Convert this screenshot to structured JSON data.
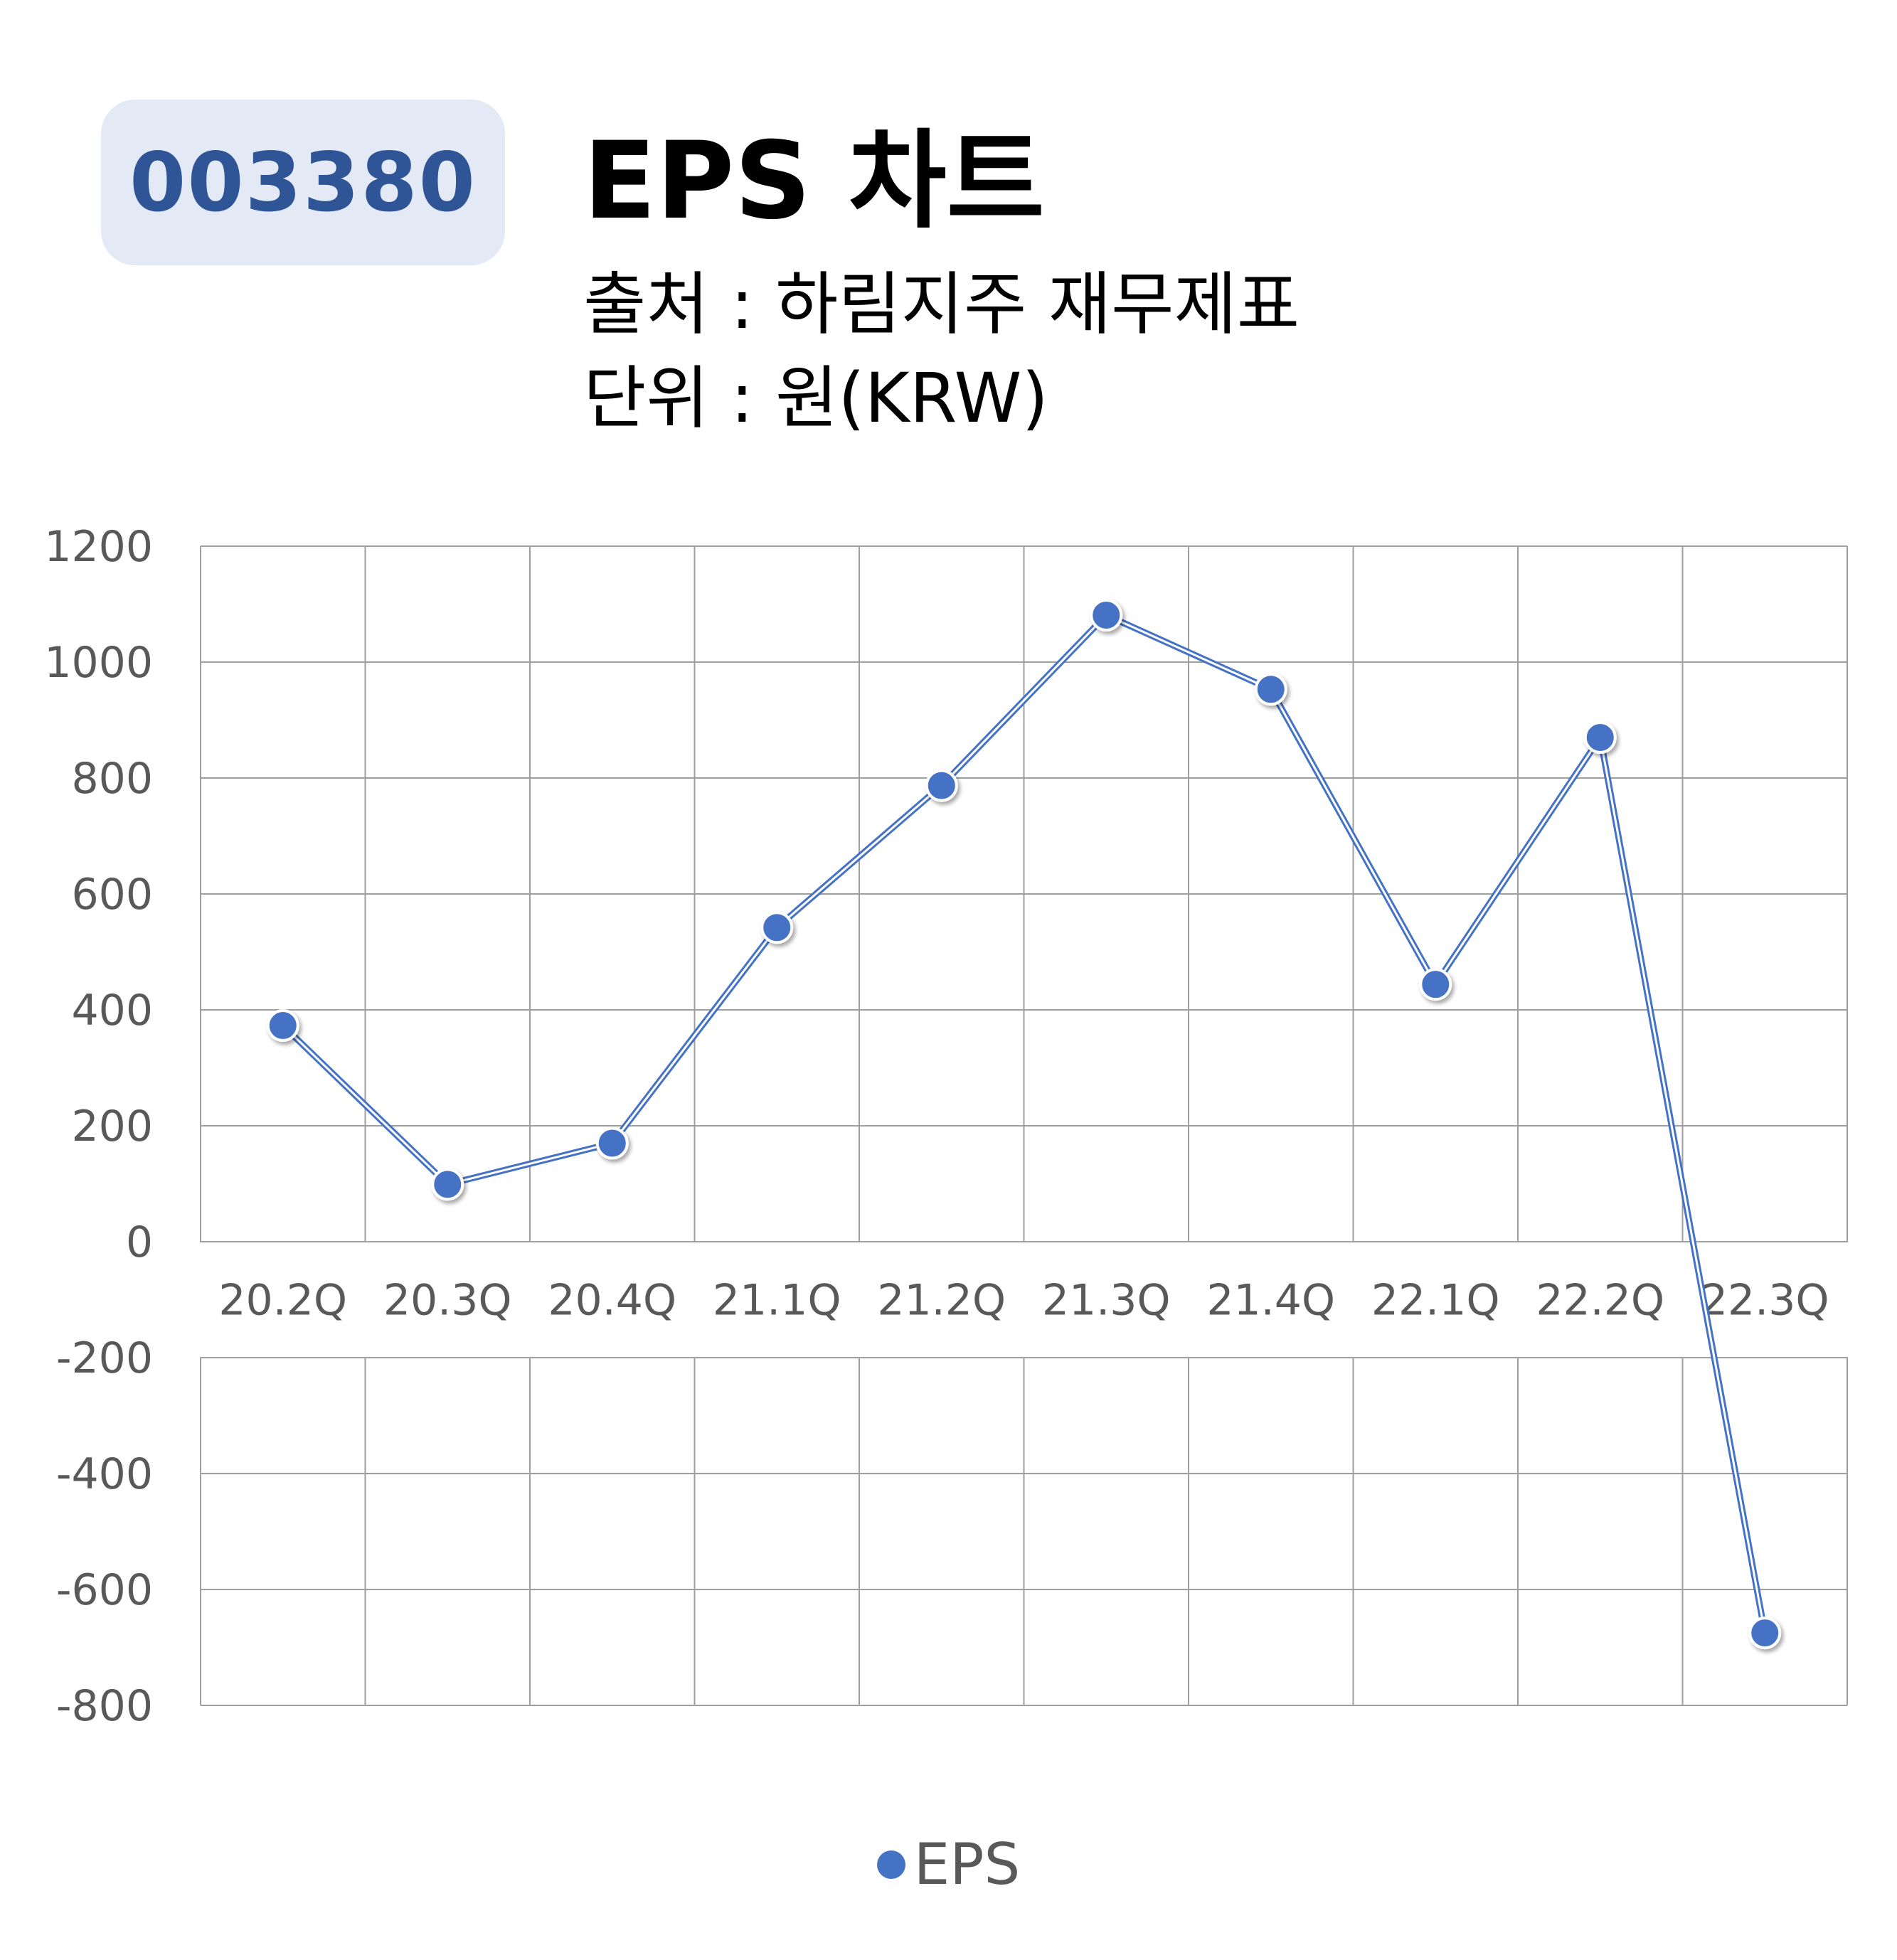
{
  "header": {
    "ticker": "003380",
    "title": "EPS 차트",
    "source": "출처 : 하림지주 재무제표",
    "unit": "단위 : 원(KRW)"
  },
  "colors": {
    "badge_bg": "#e3e9f5",
    "badge_text": "#2f5597",
    "series": "#4472c4",
    "grid": "#9f9f9f",
    "tick_text": "#595959"
  },
  "chart_data": {
    "type": "line",
    "categories": [
      "20.2Q",
      "20.3Q",
      "20.4Q",
      "21.1Q",
      "21.2Q",
      "21.3Q",
      "21.4Q",
      "22.1Q",
      "22.2Q",
      "22.3Q"
    ],
    "series": [
      {
        "name": "EPS",
        "values": [
          373,
          99,
          170,
          542,
          787,
          1081,
          953,
          444,
          870,
          -675
        ]
      }
    ],
    "ylim": [
      -800,
      1200
    ],
    "yticks": [
      1200,
      1000,
      800,
      600,
      400,
      200,
      0,
      -200,
      -400,
      -600,
      -800
    ],
    "grid": true,
    "legend_position": "bottom"
  }
}
